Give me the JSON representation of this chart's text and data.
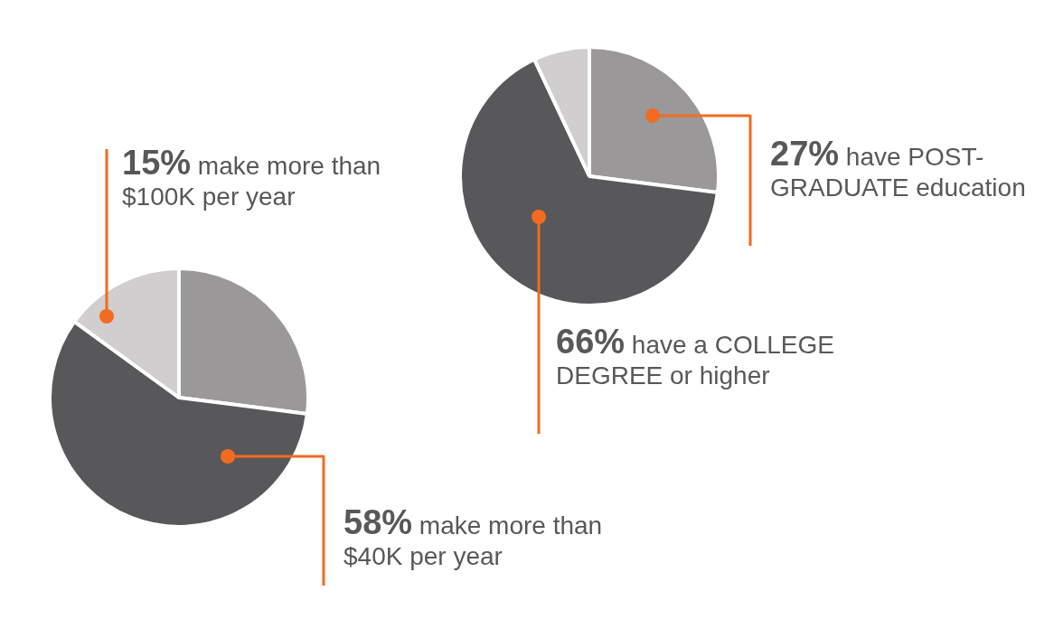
{
  "chart_data": [
    {
      "type": "pie",
      "categories": [
        null,
        "make more than $40K per year",
        "make more than $100K per year"
      ],
      "values": [
        27,
        58,
        15
      ],
      "value_labels": [
        null,
        "58%",
        "15%"
      ],
      "colors": [
        "#9b9899",
        "#58585a",
        "#d0cecf"
      ]
    },
    {
      "type": "pie",
      "categories": [
        "have POST-GRADUATE education",
        "have a COLLEGE DEGREE or higher",
        null
      ],
      "values": [
        27,
        66,
        7
      ],
      "value_labels": [
        "27%",
        "66%",
        null
      ],
      "colors": [
        "#9b9899",
        "#58585a",
        "#d0cecf"
      ]
    }
  ]
}
